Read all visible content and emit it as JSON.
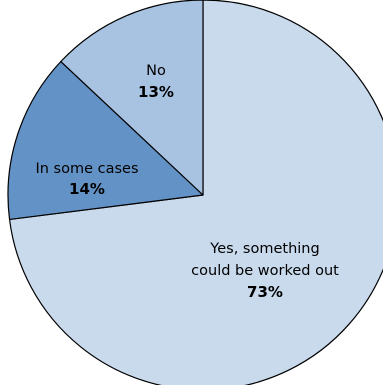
{
  "chart_data": {
    "type": "pie",
    "slices": [
      {
        "label_lines": [
          "Yes, something",
          "could be worked out"
        ],
        "percent_label": "73%",
        "value": 73,
        "color": "#c9daed"
      },
      {
        "label_lines": [
          "In some cases"
        ],
        "percent_label": "14%",
        "value": 14,
        "color": "#6393c6"
      },
      {
        "label_lines": [
          "No"
        ],
        "percent_label": "13%",
        "value": 13,
        "color": "#a7c3e1"
      }
    ],
    "start": "top",
    "direction": "clockwise",
    "legend": "none"
  }
}
